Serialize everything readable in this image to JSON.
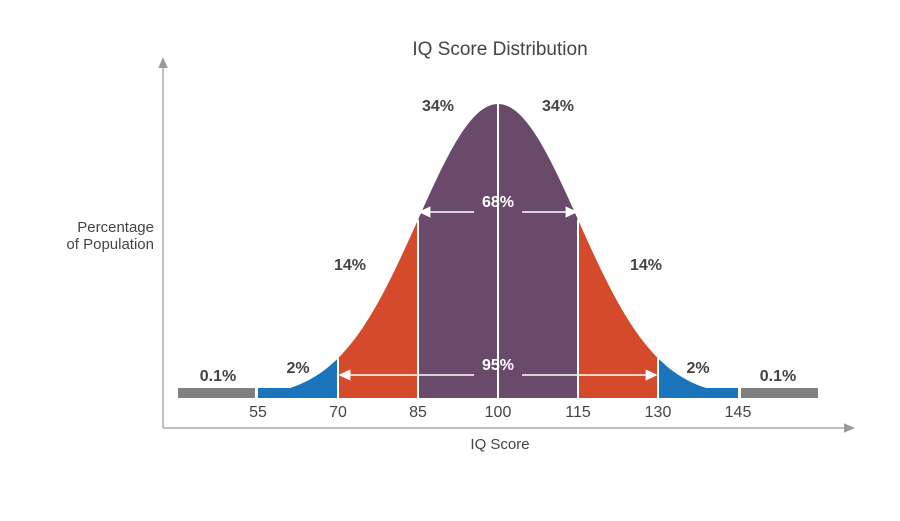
{
  "chart_data": {
    "type": "area",
    "title": "IQ Score Distribution",
    "xlabel": "IQ Score",
    "ylabel_lines": [
      "Percentage",
      "of Population"
    ],
    "x_ticks": [
      "55",
      "70",
      "85",
      "100",
      "115",
      "130",
      "145"
    ],
    "distribution": {
      "mean": 100,
      "sd": 15
    },
    "bands": [
      {
        "from": 40,
        "to": 55,
        "percent": "0.1%",
        "color": "#808080"
      },
      {
        "from": 55,
        "to": 70,
        "percent": "2%",
        "color": "#1a75bc"
      },
      {
        "from": 70,
        "to": 85,
        "percent": "14%",
        "color": "#d54a2a"
      },
      {
        "from": 85,
        "to": 100,
        "percent": "34%",
        "color": "#6a4a6b"
      },
      {
        "from": 100,
        "to": 115,
        "percent": "34%",
        "color": "#6a4a6b"
      },
      {
        "from": 115,
        "to": 130,
        "percent": "14%",
        "color": "#d54a2a"
      },
      {
        "from": 130,
        "to": 145,
        "percent": "2%",
        "color": "#1a75bc"
      },
      {
        "from": 145,
        "to": 160,
        "percent": "0.1%",
        "color": "#808080"
      }
    ],
    "spans": [
      {
        "from": 85,
        "to": 115,
        "label": "68%"
      },
      {
        "from": 70,
        "to": 130,
        "label": "95%"
      }
    ]
  }
}
